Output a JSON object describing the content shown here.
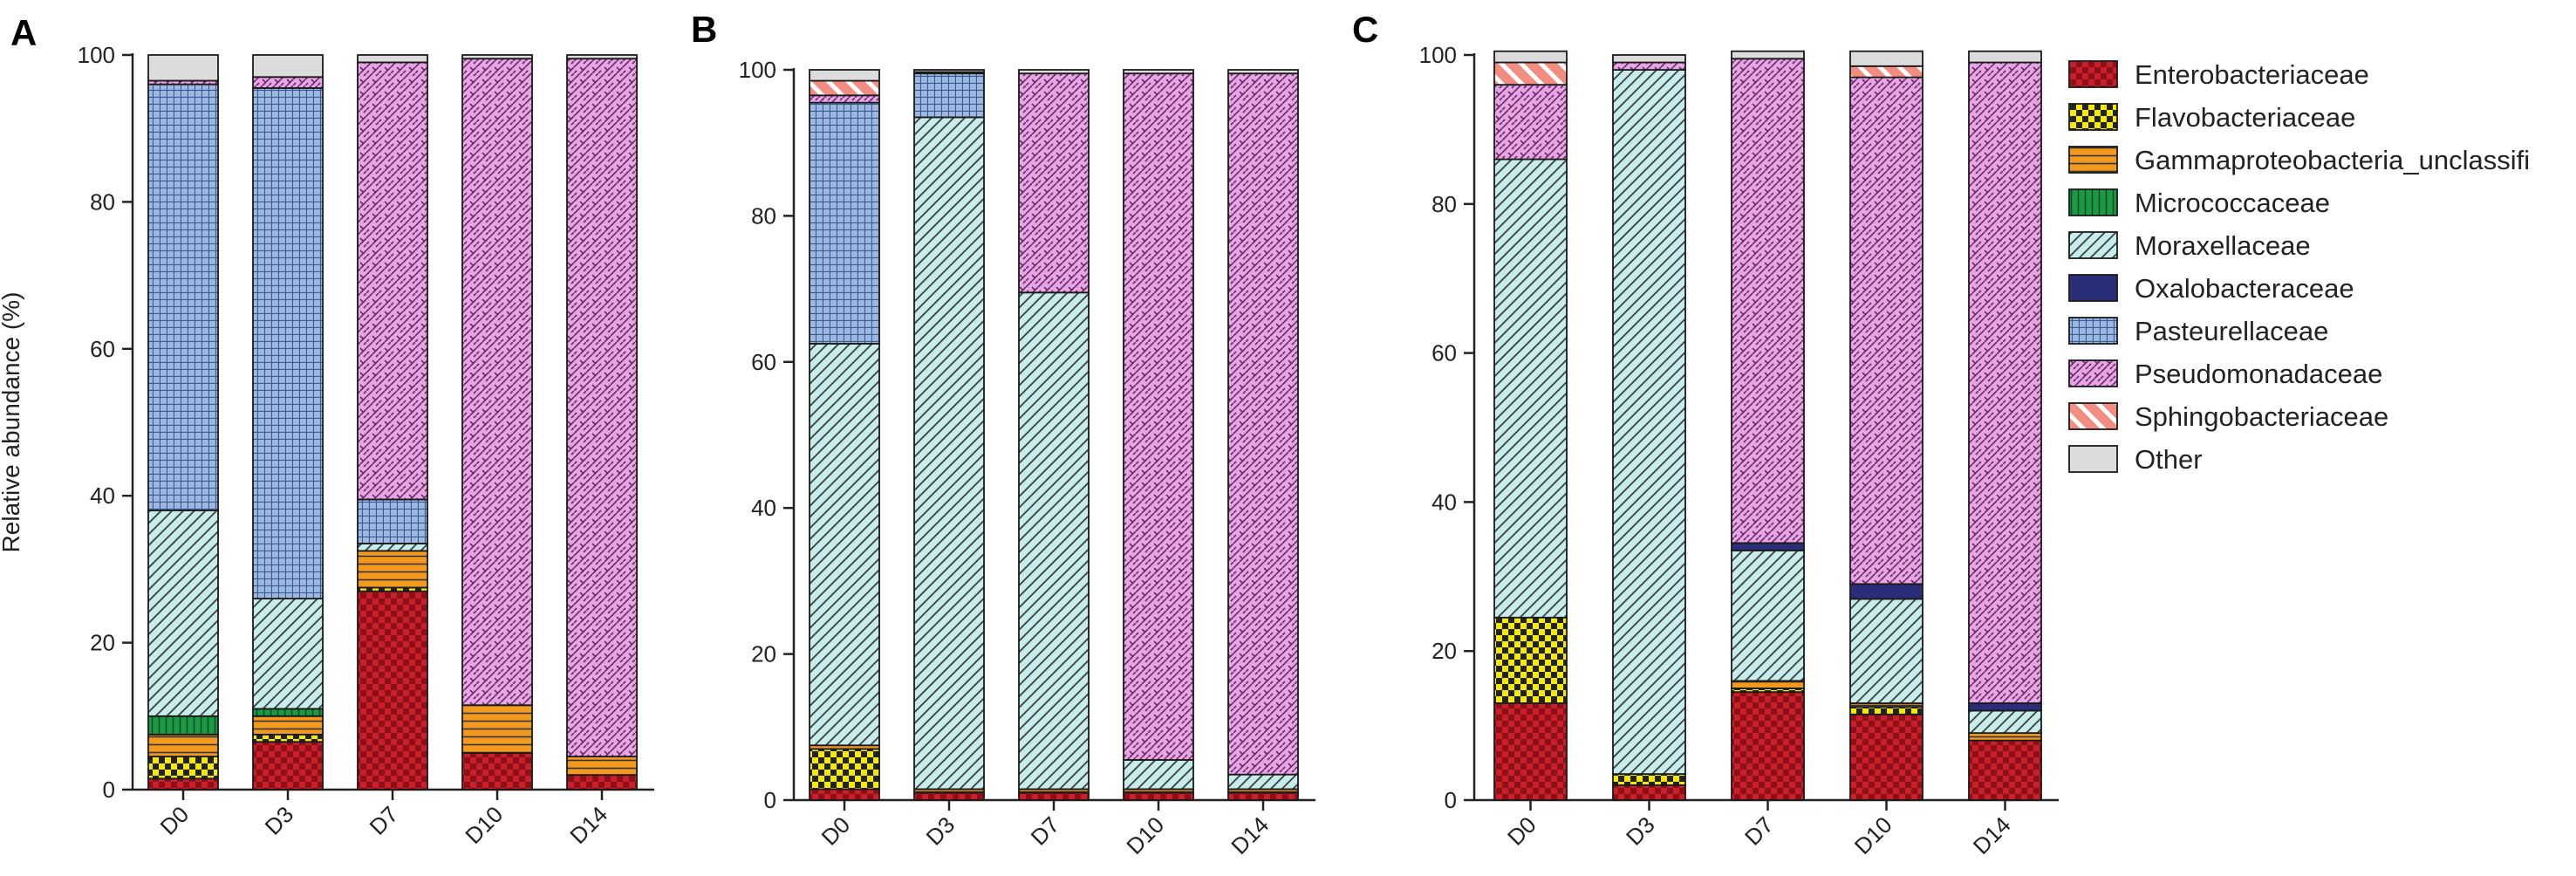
{
  "chart_data": [
    {
      "panel": "A",
      "type": "bar",
      "stacked": true,
      "title": "",
      "xlabel": "",
      "ylabel": "Relative abundance (%)",
      "ylim": [
        0,
        100
      ],
      "yticks": [
        0,
        20,
        40,
        60,
        80,
        100
      ],
      "categories": [
        "D0",
        "D3",
        "D7",
        "D10",
        "D14"
      ],
      "series": [
        {
          "name": "Enterobacteriaceae",
          "values": [
            1.5,
            6.5,
            27,
            5,
            2
          ]
        },
        {
          "name": "Flavobacteriaceae",
          "values": [
            3,
            1,
            0.5,
            0,
            0
          ]
        },
        {
          "name": "Gammaproteobacteria_unclassifi",
          "values": [
            3,
            2.5,
            5,
            6.5,
            2.5
          ]
        },
        {
          "name": "Micrococcaceae",
          "values": [
            2.5,
            1,
            0,
            0,
            0
          ]
        },
        {
          "name": "Moraxellaceae",
          "values": [
            28,
            15,
            1,
            0,
            0
          ]
        },
        {
          "name": "Oxalobacteraceae",
          "values": [
            0,
            0,
            0,
            0,
            0
          ]
        },
        {
          "name": "Pasteurellaceae",
          "values": [
            58,
            69.5,
            6,
            0,
            0
          ]
        },
        {
          "name": "Pseudomonadaceae",
          "values": [
            0.5,
            1.5,
            59.5,
            88,
            95
          ]
        },
        {
          "name": "Sphingobacteriaceae",
          "values": [
            0,
            0,
            0,
            0,
            0
          ]
        },
        {
          "name": "Other",
          "values": [
            3.5,
            3,
            1,
            0.5,
            0.5
          ]
        }
      ]
    },
    {
      "panel": "B",
      "type": "bar",
      "stacked": true,
      "title": "",
      "xlabel": "",
      "ylabel": "",
      "ylim": [
        0,
        100
      ],
      "yticks": [
        0,
        20,
        40,
        60,
        80,
        100
      ],
      "categories": [
        "D0",
        "D3",
        "D7",
        "D10",
        "D14"
      ],
      "series": [
        {
          "name": "Enterobacteriaceae",
          "values": [
            1.5,
            1,
            1,
            1,
            1
          ]
        },
        {
          "name": "Flavobacteriaceae",
          "values": [
            5.5,
            0,
            0,
            0,
            0
          ]
        },
        {
          "name": "Gammaproteobacteria_unclassifi",
          "values": [
            0.5,
            0.5,
            0.5,
            0.5,
            0.5
          ]
        },
        {
          "name": "Micrococcaceae",
          "values": [
            0,
            0,
            0,
            0,
            0
          ]
        },
        {
          "name": "Moraxellaceae",
          "values": [
            55,
            92,
            68,
            4,
            2
          ]
        },
        {
          "name": "Oxalobacteraceae",
          "values": [
            0,
            0,
            0,
            0,
            0
          ]
        },
        {
          "name": "Pasteurellaceae",
          "values": [
            33,
            6,
            0,
            0,
            0
          ]
        },
        {
          "name": "Pseudomonadaceae",
          "values": [
            1,
            0,
            30,
            94,
            96
          ]
        },
        {
          "name": "Sphingobacteriaceae",
          "values": [
            2,
            0.2,
            0,
            0,
            0
          ]
        },
        {
          "name": "Other",
          "values": [
            1.5,
            0.3,
            0.5,
            0.5,
            0.5
          ]
        }
      ]
    },
    {
      "panel": "C",
      "type": "bar",
      "stacked": true,
      "title": "",
      "xlabel": "",
      "ylabel": "",
      "ylim": [
        0,
        100
      ],
      "yticks": [
        0,
        20,
        40,
        60,
        80,
        100
      ],
      "categories": [
        "D0",
        "D3",
        "D7",
        "D10",
        "D14"
      ],
      "series": [
        {
          "name": "Enterobacteriaceae",
          "values": [
            13,
            2,
            14.5,
            11.5,
            8
          ]
        },
        {
          "name": "Flavobacteriaceae",
          "values": [
            11.5,
            1.5,
            0.5,
            1,
            0
          ]
        },
        {
          "name": "Gammaproteobacteria_unclassifi",
          "values": [
            0,
            0,
            1,
            0.5,
            1
          ]
        },
        {
          "name": "Micrococcaceae",
          "values": [
            0,
            0,
            0,
            0,
            0
          ]
        },
        {
          "name": "Moraxellaceae",
          "values": [
            61.5,
            94.5,
            17.5,
            14,
            3
          ]
        },
        {
          "name": "Oxalobacteraceae",
          "values": [
            0,
            0,
            1,
            2,
            1
          ]
        },
        {
          "name": "Pasteurellaceae",
          "values": [
            0,
            0,
            0,
            0,
            0
          ]
        },
        {
          "name": "Pseudomonadaceae",
          "values": [
            10,
            1,
            65,
            68,
            86
          ]
        },
        {
          "name": "Sphingobacteriaceae",
          "values": [
            3,
            0,
            0,
            1.5,
            0
          ]
        },
        {
          "name": "Other",
          "values": [
            1.5,
            1,
            1,
            2,
            1.5
          ]
        }
      ]
    }
  ],
  "legend": {
    "position": "right",
    "items": [
      {
        "name": "Enterobacteriaceae",
        "pattern": "checker-red"
      },
      {
        "name": "Flavobacteriaceae",
        "pattern": "checker-yellow"
      },
      {
        "name": "Gammaproteobacteria_unclassifi",
        "pattern": "stripe-orange"
      },
      {
        "name": "Micrococcaceae",
        "pattern": "vbar-green"
      },
      {
        "name": "Moraxellaceae",
        "pattern": "diag-cyan"
      },
      {
        "name": "Oxalobacteraceae",
        "pattern": "solid-navy"
      },
      {
        "name": "Pasteurellaceae",
        "pattern": "grid-blue"
      },
      {
        "name": "Pseudomonadaceae",
        "pattern": "weave-pink"
      },
      {
        "name": "Sphingobacteriaceae",
        "pattern": "diag-salmon"
      },
      {
        "name": "Other",
        "pattern": "solid-grey"
      }
    ]
  },
  "colors": {
    "Enterobacteriaceae": "#c8202a",
    "Flavobacteriaceae": "#f2e600",
    "Gammaproteobacteria_unclassifi": "#f39a1e",
    "Micrococcaceae": "#1a9a45",
    "Moraxellaceae": "#c6ecec",
    "Oxalobacteraceae": "#2a2e78",
    "Pasteurellaceae": "#9db9e2",
    "Pseudomonadaceae": "#e7a6e3",
    "Sphingobacteriaceae": "#f28d82",
    "Other": "#dcdcdc"
  }
}
